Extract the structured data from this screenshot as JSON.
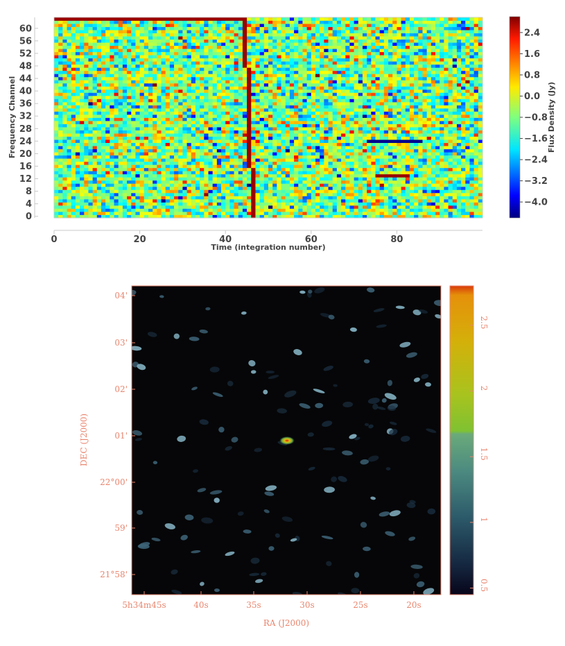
{
  "chart_data": [
    {
      "type": "heatmap",
      "xlabel": "Time (integration number)",
      "ylabel": "Frequency Channel",
      "xlim": [
        0,
        100
      ],
      "ylim": [
        0,
        64
      ],
      "x_ticks": [
        "0",
        "20",
        "40",
        "60",
        "80"
      ],
      "y_ticks": [
        "0",
        "4",
        "8",
        "12",
        "16",
        "20",
        "24",
        "28",
        "32",
        "36",
        "40",
        "44",
        "48",
        "52",
        "56",
        "60"
      ],
      "colorbar": {
        "label": "Flux Density (Jy)",
        "range": [
          -4.6,
          3.0
        ],
        "ticks": [
          "2.4",
          "1.6",
          "0.8",
          "0.0",
          "−0.8",
          "−1.6",
          "−2.4",
          "−3.2",
          "−4.0"
        ],
        "colormap": "jet"
      },
      "features": [
        {
          "kind": "dispersed-pulse",
          "time_at_top": 44,
          "time_at_bottom": 46,
          "value": 2.8
        },
        {
          "kind": "bright-top-channel",
          "channel": 63,
          "time_range": [
            0,
            44
          ],
          "value": 2.8
        },
        {
          "kind": "negative-streak",
          "channel": 24,
          "time_range": [
            73,
            85
          ],
          "value": -4.5
        },
        {
          "kind": "bright-streak",
          "channel": 13,
          "time_range": [
            75,
            82
          ],
          "value": 2.8
        }
      ]
    },
    {
      "type": "heatmap",
      "xlabel": "RA (J2000)",
      "ylabel": "DEC (J2000)",
      "x_ticks": [
        "5h34m45s",
        "40s",
        "35s",
        "30s",
        "25s",
        "20s"
      ],
      "y_ticks": [
        "04'",
        "03'",
        "02'",
        "01'",
        "22°00'",
        "59'",
        "21°58'"
      ],
      "colorbar": {
        "range": [
          0.45,
          2.8
        ],
        "ticks": [
          "2.5",
          "2",
          "1.5",
          "1",
          "0.5"
        ],
        "colormap": "cubehelix"
      },
      "source": {
        "ra": "5h34m32s",
        "dec": "+22°00'53\"",
        "peak": 2.8
      }
    }
  ]
}
